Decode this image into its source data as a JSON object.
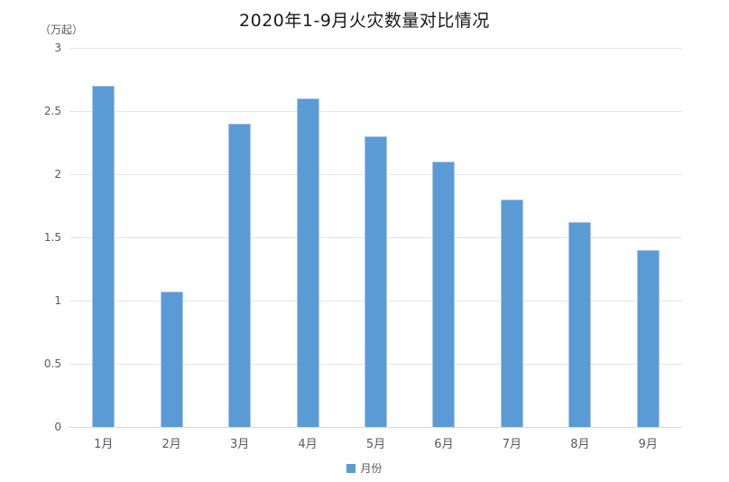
{
  "chart_data": {
    "type": "bar",
    "title": "2020年1-9月火灾数量对比情况",
    "unit_label": "（万起）",
    "xlabel": "",
    "ylabel": "（万起）",
    "categories": [
      "1月",
      "2月",
      "3月",
      "4月",
      "5月",
      "6月",
      "7月",
      "8月",
      "9月"
    ],
    "series": [
      {
        "name": "月份",
        "values": [
          2.7,
          1.07,
          2.4,
          2.6,
          2.3,
          2.1,
          1.8,
          1.62,
          1.4
        ]
      }
    ],
    "ylim": [
      0,
      3
    ],
    "ytick_step": 0.5,
    "ytick_labels": [
      "0",
      "0.5",
      "1",
      "1.5",
      "2",
      "2.5",
      "3"
    ],
    "grid": true,
    "legend": {
      "position": "bottom",
      "entries": [
        "月份"
      ]
    },
    "colors": {
      "bar": "#5b9bd5",
      "bar_border": "#a9c7e8",
      "grid": "#e6e6e6",
      "axis": "#d9d9d9",
      "tick_text": "#595959",
      "title_text": "#1a1a1a"
    }
  }
}
